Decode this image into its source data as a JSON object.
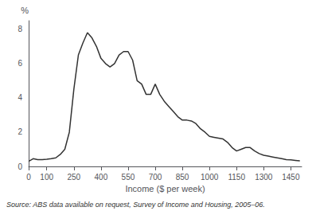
{
  "chart_data": {
    "type": "line",
    "x": [
      0,
      25,
      50,
      75,
      100,
      125,
      150,
      175,
      200,
      225,
      250,
      275,
      300,
      325,
      350,
      375,
      400,
      425,
      450,
      475,
      500,
      525,
      550,
      575,
      600,
      625,
      650,
      675,
      700,
      725,
      750,
      775,
      800,
      825,
      850,
      875,
      900,
      925,
      950,
      975,
      1000,
      1025,
      1050,
      1075,
      1100,
      1125,
      1150,
      1175,
      1200,
      1225,
      1250,
      1275,
      1300,
      1325,
      1350,
      1375,
      1400,
      1425,
      1450,
      1475,
      1500
    ],
    "values": [
      0.3,
      0.45,
      0.4,
      0.4,
      0.42,
      0.45,
      0.5,
      0.7,
      1.0,
      2.0,
      4.5,
      6.5,
      7.2,
      7.8,
      7.5,
      7.0,
      6.3,
      6.0,
      5.8,
      6.0,
      6.5,
      6.7,
      6.7,
      6.2,
      5.0,
      4.8,
      4.2,
      4.2,
      4.8,
      4.2,
      3.8,
      3.5,
      3.2,
      2.9,
      2.7,
      2.7,
      2.65,
      2.5,
      2.2,
      2.0,
      1.75,
      1.7,
      1.65,
      1.6,
      1.4,
      1.1,
      0.9,
      1.0,
      1.1,
      1.1,
      0.9,
      0.75,
      0.65,
      0.6,
      0.55,
      0.5,
      0.45,
      0.4,
      0.38,
      0.35,
      0.32
    ],
    "color": "#333333",
    "xlabel": "Income ($ per week)",
    "ylabel": "%",
    "xlim": [
      0,
      1510
    ],
    "xticks": [
      0,
      100,
      250,
      400,
      550,
      700,
      850,
      1000,
      1150,
      1300,
      1450
    ],
    "ylim": [
      0,
      8.5
    ],
    "yticks": [
      0,
      2,
      4,
      6,
      8
    ],
    "grid": false,
    "annotations": [
      "Source: ABS data available on request, Survey of Income and Housing, 2005–06."
    ]
  }
}
